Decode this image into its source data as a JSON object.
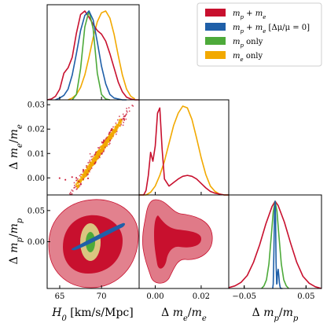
{
  "chart_data": {
    "type": "corner",
    "colors": {
      "mp_me": "#c8102e",
      "mp_me_fixed": "#1f5fa8",
      "mp_only": "#4daa3a",
      "me_only": "#f2a900",
      "contour_outer": "#e07a88",
      "contour_inner": "#c8102e",
      "me_cloud": "#f2a900"
    },
    "legend": [
      {
        "key": "mp_me",
        "label": "m_p + m_e"
      },
      {
        "key": "mp_me_fixed",
        "label": "m_p + m_e [Δμ/μ = 0]"
      },
      {
        "key": "mp_only",
        "label": "m_p only"
      },
      {
        "key": "me_only",
        "label": "m_e only"
      }
    ],
    "axes": {
      "H0": {
        "label": "H_0 [km/s/Mpc]",
        "range": [
          63.5,
          74.5
        ],
        "ticks": [
          "65",
          "70"
        ],
        "tick_values": [
          65,
          70
        ]
      },
      "dme": {
        "label": "Δ m_e/m_e",
        "range": [
          -0.007,
          0.032
        ],
        "ticks": [
          "0.00",
          "0.02"
        ],
        "tick_values": [
          0.0,
          0.02
        ],
        "y_ticks": [
          "0.00",
          "0.01",
          "0.02",
          "0.03"
        ],
        "y_tick_values": [
          0.0,
          0.01,
          0.02,
          0.03
        ]
      },
      "dmp": {
        "label": "Δ m_p/m_p",
        "range": [
          -0.075,
          0.075
        ],
        "ticks": [
          "−0.05",
          "0.05"
        ],
        "tick_values": [
          -0.05,
          0.05
        ],
        "y_ticks": [
          "0.00",
          "0.05"
        ],
        "y_tick_values": [
          0.0,
          0.05
        ]
      }
    },
    "marginals": {
      "H0": {
        "mp_me": {
          "x": [
            63.5,
            64.0,
            64.5,
            65.0,
            65.5,
            66.0,
            66.5,
            67.0,
            67.5,
            68.0,
            68.5,
            69.0,
            69.5,
            70.0,
            70.5,
            71.0,
            71.5,
            72.0,
            72.5,
            73.0,
            73.5,
            74.0,
            74.5
          ],
          "y": [
            0.0,
            0.01,
            0.04,
            0.12,
            0.3,
            0.36,
            0.48,
            0.75,
            0.96,
            1.0,
            0.93,
            0.85,
            0.78,
            0.74,
            0.66,
            0.52,
            0.36,
            0.2,
            0.09,
            0.03,
            0.01,
            0.0,
            0.0
          ]
        },
        "mp_me_fixed": {
          "x": [
            64.5,
            65.0,
            65.5,
            66.0,
            66.5,
            67.0,
            67.5,
            68.0,
            68.5,
            69.0,
            69.5,
            70.0,
            70.5,
            71.0,
            71.5,
            72.0,
            72.5,
            73.0
          ],
          "y": [
            0.0,
            0.02,
            0.05,
            0.12,
            0.28,
            0.52,
            0.78,
            0.95,
            1.0,
            0.9,
            0.65,
            0.38,
            0.18,
            0.06,
            0.02,
            0.01,
            0.0,
            0.0
          ]
        },
        "mp_only": {
          "x": [
            66.5,
            67.0,
            67.5,
            68.0,
            68.5,
            69.0,
            69.5,
            70.0,
            70.5,
            71.0
          ],
          "y": [
            0.0,
            0.06,
            0.35,
            0.82,
            1.0,
            0.8,
            0.3,
            0.06,
            0.01,
            0.0
          ]
        },
        "me_only": {
          "x": [
            66.0,
            66.5,
            67.0,
            67.5,
            68.0,
            68.5,
            69.0,
            69.5,
            70.0,
            70.5,
            71.0,
            71.5,
            72.0,
            72.5,
            73.0,
            73.5,
            74.0
          ],
          "y": [
            0.0,
            0.02,
            0.06,
            0.14,
            0.28,
            0.48,
            0.7,
            0.88,
            0.98,
            1.0,
            0.92,
            0.74,
            0.5,
            0.28,
            0.12,
            0.04,
            0.01
          ]
        }
      },
      "dme": {
        "mp_me": {
          "x": [
            -0.007,
            -0.005,
            -0.004,
            -0.003,
            -0.002,
            -0.001,
            0.0,
            0.001,
            0.002,
            0.003,
            0.004,
            0.006,
            0.008,
            0.01,
            0.012,
            0.014,
            0.016,
            0.018,
            0.02,
            0.022,
            0.024,
            0.026,
            0.028,
            0.03,
            0.032
          ],
          "y": [
            0.0,
            0.0,
            0.05,
            0.22,
            0.48,
            0.38,
            0.55,
            0.92,
            0.98,
            0.52,
            0.18,
            0.1,
            0.14,
            0.18,
            0.21,
            0.22,
            0.21,
            0.18,
            0.13,
            0.08,
            0.04,
            0.02,
            0.01,
            0.0,
            0.0
          ]
        },
        "me_only": {
          "x": [
            -0.007,
            -0.004,
            -0.002,
            0.0,
            0.002,
            0.004,
            0.006,
            0.008,
            0.01,
            0.012,
            0.014,
            0.016,
            0.018,
            0.02,
            0.022,
            0.024,
            0.026,
            0.028,
            0.03,
            0.032
          ],
          "y": [
            0.0,
            0.0,
            0.03,
            0.1,
            0.22,
            0.38,
            0.58,
            0.78,
            0.92,
            1.0,
            0.98,
            0.85,
            0.64,
            0.42,
            0.23,
            0.1,
            0.04,
            0.01,
            0.0,
            0.0
          ]
        }
      },
      "dmp": {
        "mp_me": {
          "x": [
            -0.075,
            -0.065,
            -0.055,
            -0.045,
            -0.035,
            -0.025,
            -0.015,
            -0.005,
            0.0,
            0.005,
            0.015,
            0.025,
            0.035,
            0.045,
            0.055,
            0.065,
            0.075
          ],
          "y": [
            0.01,
            0.03,
            0.07,
            0.15,
            0.3,
            0.5,
            0.74,
            0.94,
            1.0,
            0.95,
            0.76,
            0.52,
            0.3,
            0.14,
            0.06,
            0.02,
            0.0
          ]
        },
        "mp_me_fixed": {
          "x": [
            -0.004,
            -0.003,
            -0.002,
            -0.001,
            0.0,
            0.0008,
            0.0015,
            0.0025,
            0.003,
            0.004,
            0.005,
            0.006,
            0.007,
            0.008,
            0.009,
            0.01,
            0.011,
            0.012
          ],
          "y": [
            0.0,
            0.05,
            0.4,
            0.85,
            1.0,
            0.8,
            0.3,
            0.05,
            0.06,
            0.18,
            0.22,
            0.15,
            0.06,
            0.02,
            0.0,
            0.0,
            0.0,
            0.0
          ]
        },
        "mp_only": {
          "x": [
            -0.022,
            -0.018,
            -0.014,
            -0.01,
            -0.006,
            -0.003,
            0.0,
            0.003,
            0.006,
            0.01,
            0.014,
            0.018,
            0.022
          ],
          "y": [
            0.0,
            0.03,
            0.1,
            0.28,
            0.62,
            0.88,
            1.0,
            0.88,
            0.62,
            0.28,
            0.1,
            0.03,
            0.0
          ]
        }
      }
    }
  }
}
